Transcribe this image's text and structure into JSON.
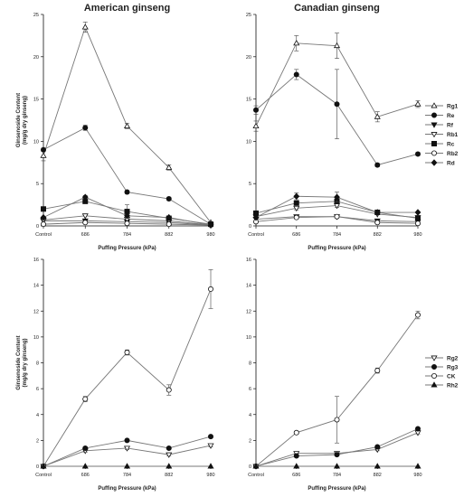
{
  "chart_data": [
    {
      "type": "line",
      "title": "American ginseng",
      "xlabel": "Puffing Pressure (kPa)",
      "ylabel": "Ginsenoside Content (mg/g dry ginseng)",
      "categories": [
        "Control",
        "686",
        "784",
        "882",
        "980"
      ],
      "ylim": [
        0,
        25
      ],
      "yticks": [
        0,
        5,
        10,
        15,
        20,
        25
      ],
      "grid": false,
      "series": [
        {
          "name": "Rg1",
          "marker": "open-triangle-up",
          "values": [
            8.3,
            23.5,
            11.8,
            6.9,
            0.4
          ],
          "errors": [
            0.6,
            0.6,
            0.3,
            0.3,
            0.1
          ]
        },
        {
          "name": "Re",
          "marker": "filled-circle",
          "values": [
            9.0,
            11.6,
            4.0,
            3.2,
            0.2
          ],
          "errors": [
            0.2,
            0.3,
            0.2,
            0.2,
            0.1
          ]
        },
        {
          "name": "Rf",
          "marker": "filled-triangle-down",
          "values": [
            0.6,
            0.6,
            0.5,
            0.4,
            0.1
          ],
          "errors": [
            0.1,
            0.1,
            0.1,
            0.1,
            0.1
          ]
        },
        {
          "name": "Rb1",
          "marker": "open-triangle-down",
          "values": [
            0.7,
            1.2,
            0.8,
            0.6,
            0.1
          ],
          "errors": [
            0.1,
            0.1,
            0.1,
            0.1,
            0.1
          ]
        },
        {
          "name": "Rc",
          "marker": "filled-square",
          "values": [
            2.0,
            2.9,
            1.7,
            0.9,
            0.2
          ],
          "errors": [
            0.1,
            0.2,
            0.8,
            0.2,
            0.1
          ]
        },
        {
          "name": "Rb2",
          "marker": "open-circle",
          "values": [
            0.2,
            0.4,
            0.3,
            0.2,
            0.1
          ],
          "errors": [
            0.1,
            0.1,
            0.1,
            0.1,
            0.1
          ]
        },
        {
          "name": "Rd",
          "marker": "filled-diamond",
          "values": [
            1.0,
            3.4,
            1.2,
            1.0,
            0.1
          ],
          "errors": [
            0.1,
            0.2,
            0.2,
            0.1,
            0.1
          ]
        }
      ]
    },
    {
      "type": "line",
      "title": "Canadian ginseng",
      "xlabel": "Puffing Pressure (kPa)",
      "ylabel": "",
      "categories": [
        "Control",
        "686",
        "784",
        "882",
        "980"
      ],
      "ylim": [
        0,
        25
      ],
      "yticks": [
        0,
        5,
        10,
        15,
        20,
        25
      ],
      "grid": false,
      "legend_position": "right",
      "series": [
        {
          "name": "Rg1",
          "marker": "open-triangle-up",
          "values": [
            11.8,
            21.6,
            21.3,
            12.9,
            14.4
          ],
          "errors": [
            0.6,
            0.9,
            1.5,
            0.6,
            0.4
          ]
        },
        {
          "name": "Re",
          "marker": "filled-circle",
          "values": [
            13.7,
            17.9,
            14.4,
            7.2,
            8.5
          ],
          "errors": [
            0.5,
            0.6,
            4.1,
            0.2,
            0.2
          ]
        },
        {
          "name": "Rf",
          "marker": "filled-triangle-down",
          "values": [
            0.8,
            1.1,
            1.1,
            0.6,
            0.5
          ],
          "errors": [
            0.1,
            0.1,
            0.1,
            0.1,
            0.1
          ]
        },
        {
          "name": "Rb1",
          "marker": "open-triangle-down",
          "values": [
            1.1,
            2.1,
            2.4,
            1.4,
            1.0
          ],
          "errors": [
            0.1,
            0.2,
            0.2,
            0.1,
            0.1
          ]
        },
        {
          "name": "Rc",
          "marker": "filled-square",
          "values": [
            1.5,
            2.7,
            2.9,
            1.6,
            0.9
          ],
          "errors": [
            0.1,
            0.2,
            0.3,
            0.1,
            0.1
          ]
        },
        {
          "name": "Rb2",
          "marker": "open-circle",
          "values": [
            0.5,
            1.0,
            1.1,
            0.4,
            0.3
          ],
          "errors": [
            0.1,
            0.1,
            0.1,
            0.1,
            0.1
          ]
        },
        {
          "name": "Rd",
          "marker": "filled-diamond",
          "values": [
            1.0,
            3.5,
            3.4,
            1.6,
            1.6
          ],
          "errors": [
            0.1,
            0.4,
            0.6,
            0.1,
            0.1
          ]
        }
      ]
    },
    {
      "type": "line",
      "title": "",
      "xlabel": "Puffing Pressure (kPa)",
      "ylabel": "Ginsenoside Content (mg/g dry ginseng)",
      "categories": [
        "Control",
        "686",
        "784",
        "882",
        "980"
      ],
      "ylim": [
        0,
        16
      ],
      "yticks": [
        0,
        2,
        4,
        6,
        8,
        10,
        12,
        14,
        16
      ],
      "grid": false,
      "series": [
        {
          "name": "Rg2",
          "marker": "open-triangle-down",
          "values": [
            0.0,
            1.2,
            1.4,
            0.9,
            1.6
          ],
          "errors": [
            0.05,
            0.1,
            0.1,
            0.1,
            0.1
          ]
        },
        {
          "name": "Rg3",
          "marker": "filled-circle",
          "values": [
            0.0,
            1.4,
            2.0,
            1.4,
            2.3
          ],
          "errors": [
            0.05,
            0.1,
            0.1,
            0.1,
            0.1
          ]
        },
        {
          "name": "CK",
          "marker": "open-circle",
          "values": [
            0.0,
            5.2,
            8.8,
            5.9,
            13.7
          ],
          "errors": [
            0.05,
            0.2,
            0.2,
            0.4,
            1.5
          ]
        },
        {
          "name": "Rh2",
          "marker": "filled-triangle-up",
          "values": [
            0.0,
            0.0,
            0.0,
            0.0,
            0.0
          ],
          "errors": [
            0.02,
            0.02,
            0.02,
            0.02,
            0.02
          ]
        }
      ]
    },
    {
      "type": "line",
      "title": "",
      "xlabel": "Puffing Pressure (kPa)",
      "ylabel": "",
      "categories": [
        "Control",
        "686",
        "784",
        "882",
        "980"
      ],
      "ylim": [
        0,
        16
      ],
      "yticks": [
        0,
        2,
        4,
        6,
        8,
        10,
        12,
        14,
        16
      ],
      "grid": false,
      "legend_position": "right",
      "series": [
        {
          "name": "Rg2",
          "marker": "open-triangle-down",
          "values": [
            0.0,
            1.0,
            1.0,
            1.3,
            2.6
          ],
          "errors": [
            0.05,
            0.1,
            0.1,
            0.1,
            0.1
          ]
        },
        {
          "name": "Rg3",
          "marker": "filled-circle",
          "values": [
            0.0,
            0.8,
            0.9,
            1.5,
            2.9
          ],
          "errors": [
            0.05,
            0.1,
            0.1,
            0.1,
            0.1
          ]
        },
        {
          "name": "CK",
          "marker": "open-circle",
          "values": [
            0.0,
            2.6,
            3.6,
            7.4,
            11.7
          ],
          "errors": [
            0.05,
            0.1,
            1.8,
            0.2,
            0.3
          ]
        },
        {
          "name": "Rh2",
          "marker": "filled-triangle-up",
          "values": [
            0.0,
            0.0,
            0.0,
            0.0,
            0.0
          ],
          "errors": [
            0.02,
            0.02,
            0.02,
            0.02,
            0.02
          ]
        }
      ]
    }
  ]
}
